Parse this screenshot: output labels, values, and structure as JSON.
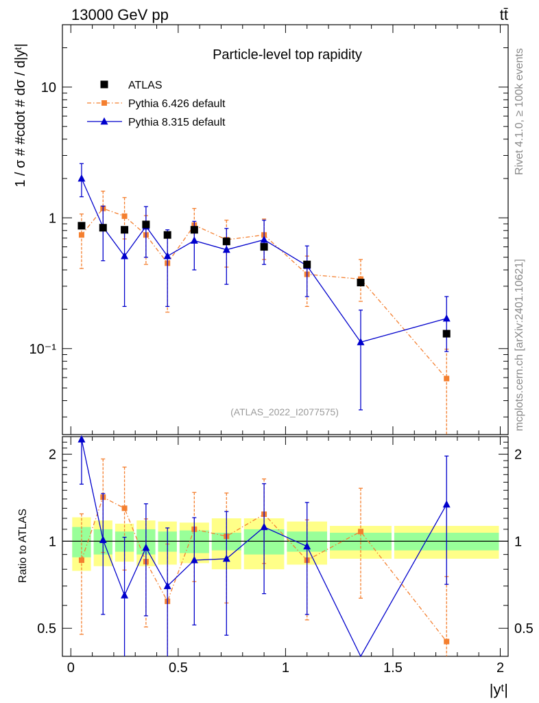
{
  "header": {
    "energy": "13000 GeV pp",
    "process": "tt̄"
  },
  "side": {
    "rivet": "Rivet 4.1.0, ≥ 100k events",
    "mcplots": "mcplots.cern.ch [arXiv:2401.10621]"
  },
  "colors": {
    "data": "#000000",
    "pythia6": "#f47f2f",
    "pythia8": "#0000cc",
    "band_inner": "#99ff99",
    "band_outer": "#ffff88"
  },
  "chart_data": {
    "type": "line",
    "title": "Particle-level top rapidity",
    "analysis": "(ATLAS_2022_I2077575)",
    "xlabel": "|yᵗ|",
    "ylabel": "1 / σ # #cdot # dσ / d|yᵗ|",
    "ratio_ylabel": "Ratio to ATLAS",
    "xlim": [
      0,
      2
    ],
    "ylim": [
      0.022,
      30
    ],
    "ylog": true,
    "ratio_ylim": [
      0.4,
      2.3
    ],
    "x_ticks": [
      0,
      0.5,
      1,
      1.5,
      2
    ],
    "x_tick_labels": [
      "0",
      "0.5",
      "1",
      "1.5",
      "2"
    ],
    "y_ticks": [
      0.1,
      1,
      10
    ],
    "y_tick_labels": [
      "10⁻¹",
      "1",
      "10"
    ],
    "ratio_ticks": [
      0.5,
      1,
      2
    ],
    "ratio_tick_labels": [
      "0.5",
      "1",
      "2"
    ],
    "bins": [
      [
        0.0,
        0.1
      ],
      [
        0.1,
        0.2
      ],
      [
        0.2,
        0.3
      ],
      [
        0.3,
        0.4
      ],
      [
        0.4,
        0.5
      ],
      [
        0.5,
        0.65
      ],
      [
        0.65,
        0.8
      ],
      [
        0.8,
        1.0
      ],
      [
        1.0,
        1.2
      ],
      [
        1.2,
        1.5
      ],
      [
        1.5,
        2.0
      ]
    ],
    "x": [
      0.05,
      0.15,
      0.25,
      0.35,
      0.45,
      0.575,
      0.725,
      0.9,
      1.1,
      1.35,
      1.75
    ],
    "legend": [
      {
        "name": "ATLAS",
        "style": "data"
      },
      {
        "name": "Pythia 6.426 default",
        "style": "pythia6"
      },
      {
        "name": "Pythia 8.315 default",
        "style": "pythia8"
      }
    ],
    "series": [
      {
        "name": "ATLAS",
        "key": "data",
        "values": [
          0.87,
          0.84,
          0.81,
          0.89,
          0.74,
          0.81,
          0.66,
          0.6,
          0.44,
          0.32,
          0.13
        ],
        "rel_err_inner": [
          0.12,
          0.1,
          0.08,
          0.1,
          0.08,
          0.09,
          0.07,
          0.1,
          0.08,
          0.07,
          0.07
        ],
        "rel_err_outer": [
          0.21,
          0.18,
          0.15,
          0.18,
          0.17,
          0.16,
          0.2,
          0.2,
          0.17,
          0.13,
          0.13
        ]
      },
      {
        "name": "Pythia 6.426 default",
        "key": "pythia6",
        "values": [
          0.74,
          1.18,
          1.03,
          0.74,
          0.45,
          0.88,
          0.68,
          0.74,
          0.37,
          0.34,
          0.059
        ],
        "err_low": [
          0.33,
          0.36,
          0.34,
          0.3,
          0.26,
          0.22,
          0.26,
          0.26,
          0.16,
          0.11,
          0.045
        ],
        "err_high": [
          0.33,
          0.42,
          0.4,
          0.3,
          0.26,
          0.3,
          0.28,
          0.24,
          0.14,
          0.14,
          0.04
        ],
        "ratio": [
          0.86,
          1.42,
          1.3,
          0.85,
          0.62,
          1.1,
          1.04,
          1.24,
          0.86,
          1.08,
          0.45
        ]
      },
      {
        "name": "Pythia 8.315 default",
        "key": "pythia8",
        "values": [
          2.0,
          0.85,
          0.51,
          0.86,
          0.51,
          0.67,
          0.57,
          0.68,
          0.43,
          0.112,
          0.17
        ],
        "err_low": [
          0.55,
          0.38,
          0.3,
          0.36,
          0.3,
          0.27,
          0.26,
          0.24,
          0.18,
          0.078,
          0.075
        ],
        "err_high": [
          0.6,
          0.38,
          0.3,
          0.36,
          0.3,
          0.27,
          0.26,
          0.28,
          0.18,
          0.085,
          0.08
        ],
        "ratio": [
          2.25,
          1.01,
          0.65,
          0.95,
          0.7,
          0.86,
          0.87,
          1.12,
          0.96,
          0.34,
          1.34
        ]
      }
    ]
  }
}
